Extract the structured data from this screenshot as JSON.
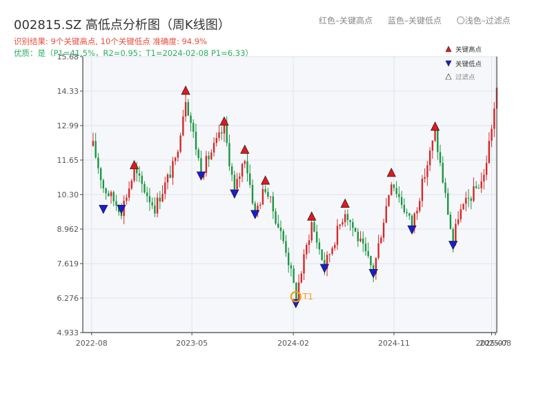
{
  "title": "002815.SZ 高低点分析图（周K线图）",
  "subtitle_result": "识别结果: 9个关键高点, 10个关键低点   准确度: 94.9%",
  "subtitle_quality": "优质：是（P1=41.5%，R2=0.95；T1=2024-02-08 P1=6.33）",
  "header_legend": {
    "red": "红色–关键高点",
    "blue": "蓝色–关键低点",
    "hollow": "〇浅色–过滤点"
  },
  "colors": {
    "up": "#d62728",
    "down": "#1a9641",
    "high_marker": "#e8161b",
    "low_marker": "#1b1bd8",
    "t1": "#f39c12",
    "plot_bg": "#f5f7fa",
    "grid": "#dfe3ea"
  },
  "chart_data": {
    "type": "candlestick",
    "title": "002815.SZ 高低点分析图（周K线图）",
    "x_ticks": [
      "2022-08",
      "2023-05",
      "2024-02",
      "2024-11",
      "2025-07",
      "2025-08"
    ],
    "y_ticks": [
      "4.933",
      "6.276",
      "7.619",
      "8.962",
      "10.30",
      "11.65",
      "12.99",
      "14.33",
      "15.68"
    ],
    "ylim": [
      4.933,
      15.68
    ],
    "grid": true,
    "legend_position": "top-right",
    "legend": {
      "high": "关键高点",
      "low": "关键低点",
      "filtered": "过滤点"
    },
    "anchors": [
      [
        "2022-08-05",
        12.2
      ],
      [
        "2022-09-02",
        10.6
      ],
      [
        "2022-10-21",
        9.7
      ],
      [
        "2022-11-25",
        11.2
      ],
      [
        "2023-01-20",
        9.8
      ],
      [
        "2023-03-17",
        11.6
      ],
      [
        "2023-04-14",
        14.1
      ],
      [
        "2023-05-26",
        11.2
      ],
      [
        "2023-07-28",
        12.9
      ],
      [
        "2023-08-25",
        10.4
      ],
      [
        "2023-09-22",
        11.8
      ],
      [
        "2023-10-20",
        9.6
      ],
      [
        "2023-11-17",
        10.6
      ],
      [
        "2024-01-12",
        8.2
      ],
      [
        "2024-02-08",
        6.33
      ],
      [
        "2024-03-22",
        9.2
      ],
      [
        "2024-04-26",
        7.5
      ],
      [
        "2024-06-21",
        9.7
      ],
      [
        "2024-09-06",
        7.3
      ],
      [
        "2024-10-25",
        10.9
      ],
      [
        "2024-12-20",
        9.1
      ],
      [
        "2025-02-21",
        12.7
      ],
      [
        "2025-04-11",
        8.4
      ],
      [
        "2025-04-25",
        9.5
      ],
      [
        "2025-07-04",
        11.0
      ],
      [
        "2025-08-08",
        14.3
      ]
    ],
    "key_highs": [
      {
        "date": "2022-11-25",
        "price": 11.2
      },
      {
        "date": "2023-04-14",
        "price": 14.1
      },
      {
        "date": "2023-07-28",
        "price": 12.9
      },
      {
        "date": "2023-09-22",
        "price": 11.8
      },
      {
        "date": "2023-11-17",
        "price": 10.6
      },
      {
        "date": "2024-03-22",
        "price": 9.2
      },
      {
        "date": "2024-06-21",
        "price": 9.7
      },
      {
        "date": "2024-10-25",
        "price": 10.9
      },
      {
        "date": "2025-02-21",
        "price": 12.7
      }
    ],
    "key_lows": [
      {
        "date": "2022-09-02",
        "price": 10.0
      },
      {
        "date": "2022-10-21",
        "price": 10.0
      },
      {
        "date": "2023-05-26",
        "price": 11.3
      },
      {
        "date": "2023-08-25",
        "price": 10.6
      },
      {
        "date": "2023-10-20",
        "price": 9.8
      },
      {
        "date": "2024-02-08",
        "price": 6.33
      },
      {
        "date": "2024-04-26",
        "price": 7.7
      },
      {
        "date": "2024-09-06",
        "price": 7.5
      },
      {
        "date": "2024-12-20",
        "price": 9.2
      },
      {
        "date": "2025-04-11",
        "price": 8.6
      }
    ],
    "annotations": [
      {
        "label": "T1",
        "date": "2024-02-08",
        "price": 6.33
      }
    ]
  }
}
